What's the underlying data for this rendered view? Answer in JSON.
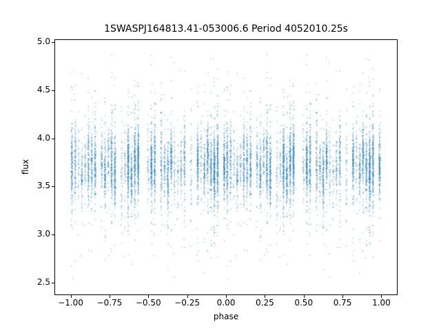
{
  "figure": {
    "background": "#ffffff"
  },
  "chart_data": {
    "type": "scatter",
    "title": "1SWASPJ164813.41-053006.6 Period 4052010.25s",
    "xlabel": "phase",
    "ylabel": "flux",
    "xlim": [
      -1.1,
      1.1
    ],
    "ylim": [
      2.38,
      5.02
    ],
    "x_ticks": [
      {
        "value": -1.0,
        "label": "−1.00"
      },
      {
        "value": -0.75,
        "label": "−0.75"
      },
      {
        "value": -0.5,
        "label": "−0.50"
      },
      {
        "value": -0.25,
        "label": "−0.25"
      },
      {
        "value": 0.0,
        "label": "0.00"
      },
      {
        "value": 0.25,
        "label": "0.25"
      },
      {
        "value": 0.5,
        "label": "0.50"
      },
      {
        "value": 0.75,
        "label": "0.75"
      },
      {
        "value": 1.0,
        "label": "1.00"
      }
    ],
    "y_ticks": [
      {
        "value": 2.5,
        "label": "2.5"
      },
      {
        "value": 3.0,
        "label": "3.0"
      },
      {
        "value": 3.5,
        "label": "3.5"
      },
      {
        "value": 4.0,
        "label": "4.0"
      },
      {
        "value": 4.5,
        "label": "4.5"
      },
      {
        "value": 5.0,
        "label": "5.0"
      }
    ],
    "grid": false,
    "legend": null,
    "point_color": "#1f77b4",
    "point_alpha": 0.5,
    "marker_size_px": 1.3,
    "series_description": "Folded light curve plotted twice over phase -1 to 1; roughly 13000 tiny points arranged in ~47 narrow vertical strips spaced ~0.0213 in phase (nightly sampling); dense flux band between about 3.3 and 4.1 centered near 3.7, with sparse scatter reaching down to ~2.5 and up to ~4.9",
    "generator": {
      "seed": 42,
      "columns": 47,
      "column_step": 0.021323,
      "column_offset": 0.008,
      "column_presence": 0.86,
      "points_min": 40,
      "points_max": 300,
      "x_jitter_sigma": 0.0025,
      "core_mean_base": 3.58,
      "core_mean_spread": 0.27,
      "core_sigma_min": 0.12,
      "core_sigma_max": 0.22,
      "broad_fraction": 0.18,
      "broad_mean": 3.7,
      "broad_sigma": 0.45,
      "y_min": 2.45,
      "y_max": 4.92,
      "mirror": true
    }
  }
}
